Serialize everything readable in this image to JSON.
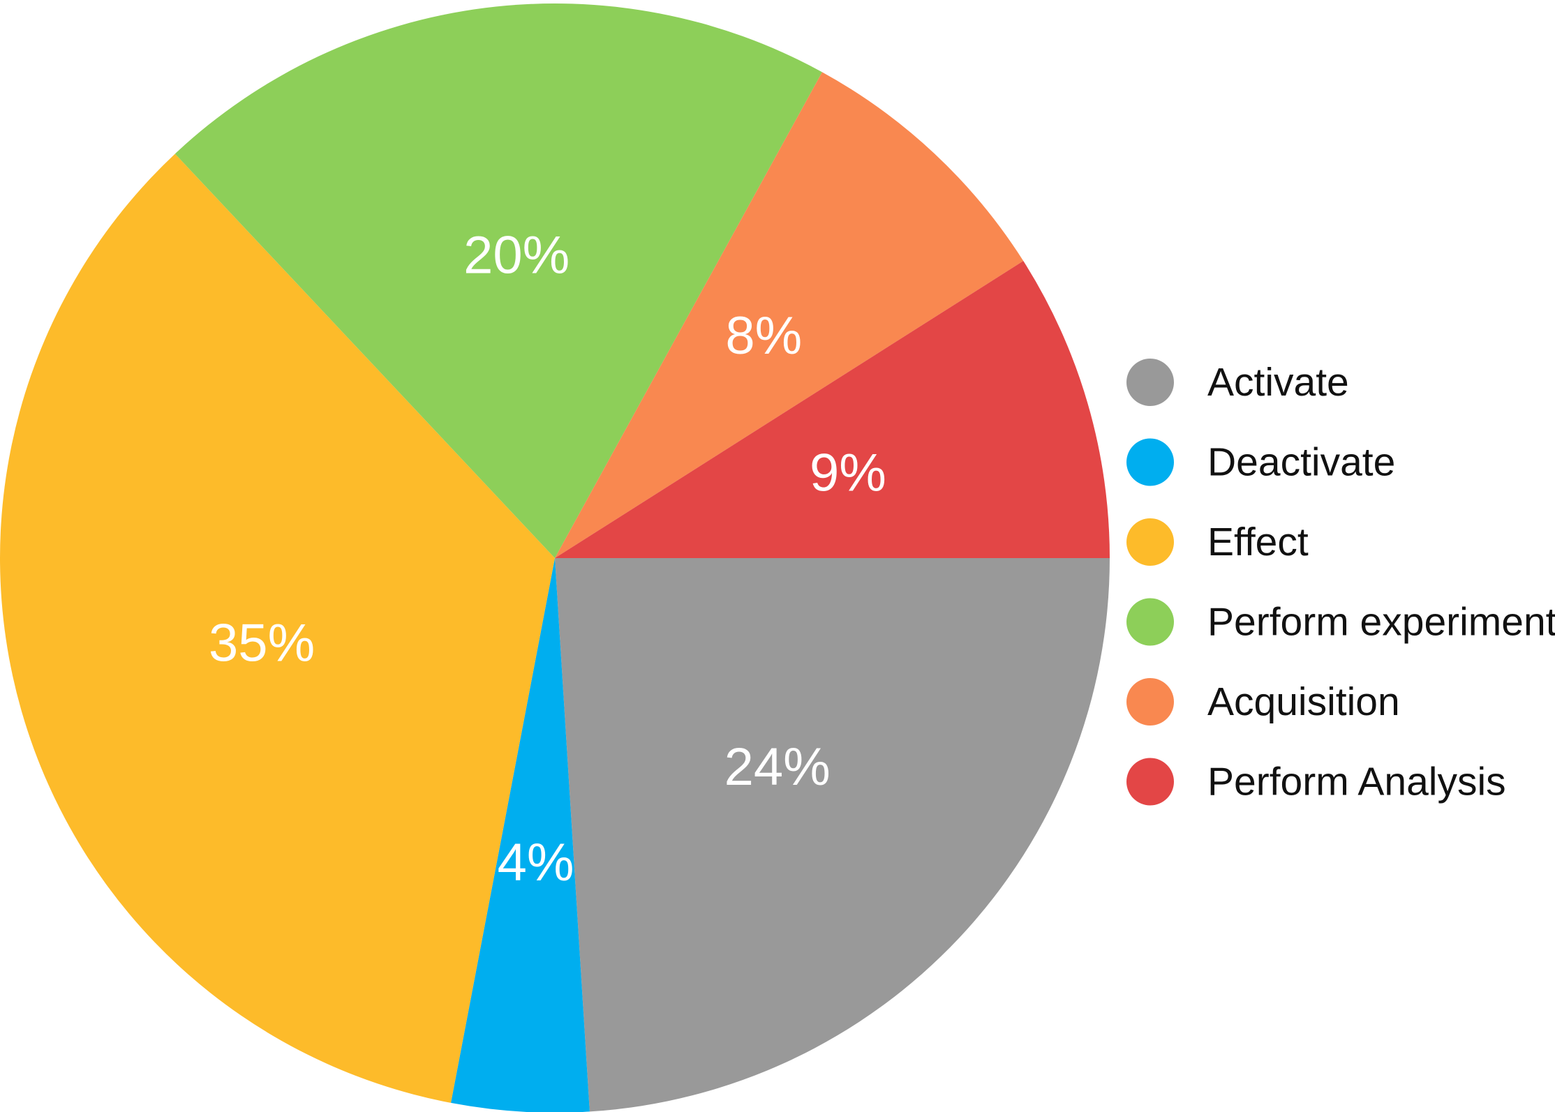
{
  "chart_data": {
    "type": "pie",
    "title": "",
    "categories": [
      "Activate",
      "Deactivate",
      "Effect",
      "Perform experiment",
      "Acquisition",
      "Perform Analysis"
    ],
    "values": [
      24,
      4,
      35,
      20,
      8,
      9
    ],
    "labels": [
      "24%",
      "4%",
      "35%",
      "20%",
      "8%",
      "9%"
    ],
    "colors": [
      "#999999",
      "#00AEEF",
      "#FDBB2A",
      "#8DCF59",
      "#F98850",
      "#E34646"
    ],
    "start_angle_deg": 0,
    "direction": "clockwise",
    "legend": {
      "position": "right",
      "entries": [
        "Activate",
        "Deactivate",
        "Effect",
        "Perform experiment",
        "Acquisition",
        "Perform Analysis"
      ]
    }
  }
}
